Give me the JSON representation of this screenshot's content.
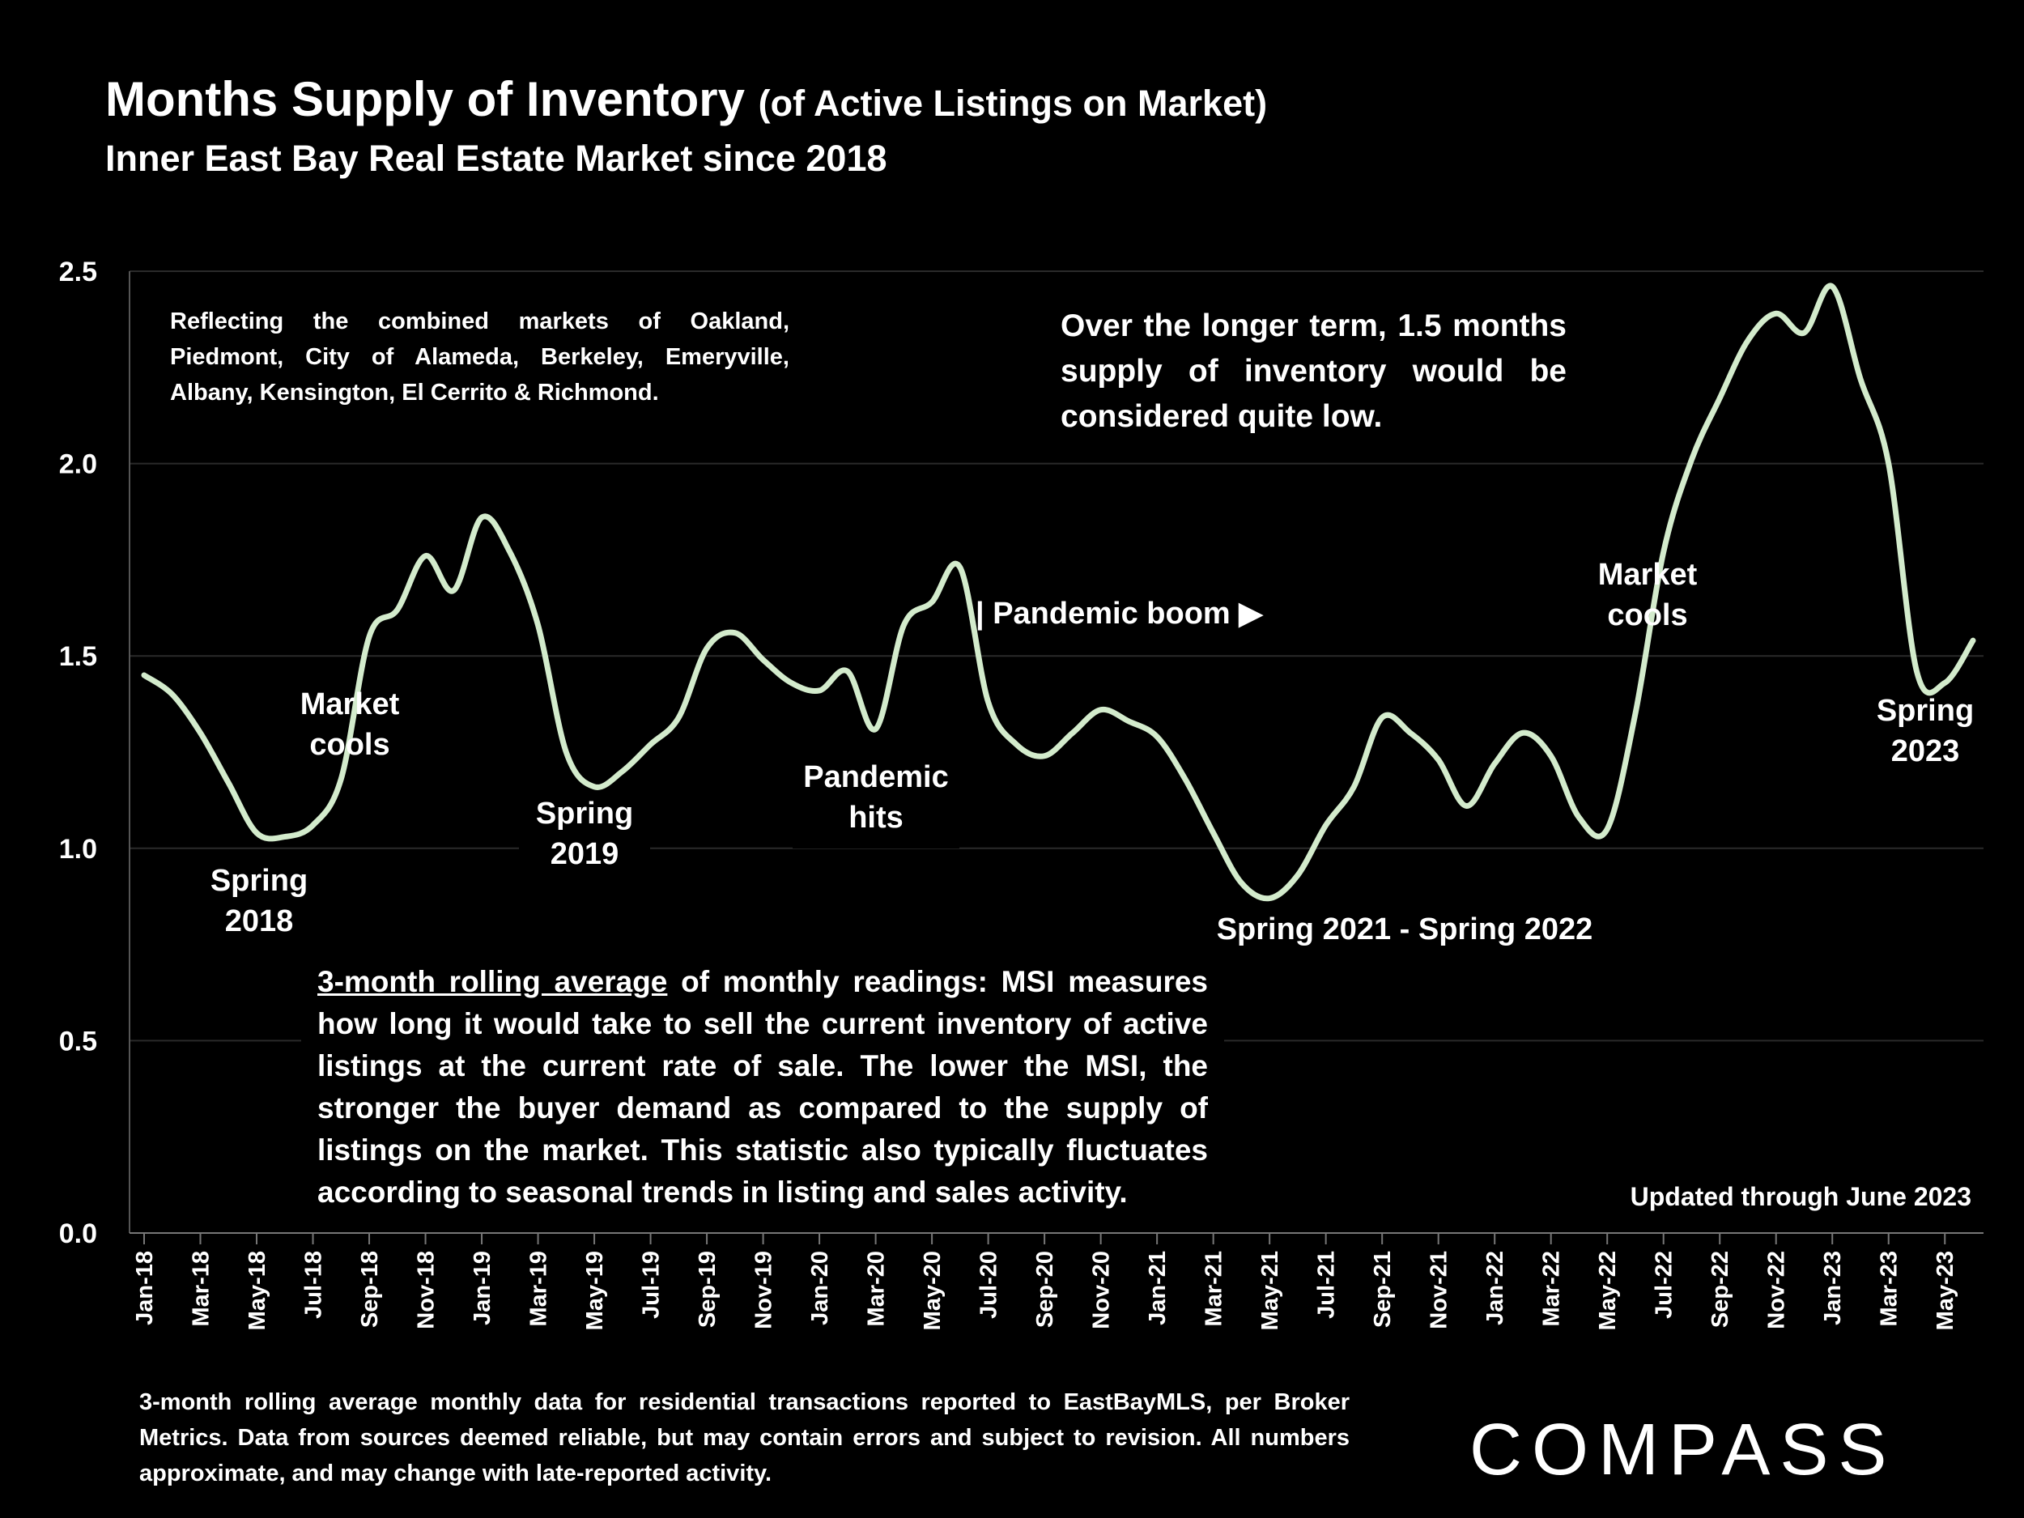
{
  "title": {
    "main": "Months Supply of Inventory",
    "suffix": "(of Active Listings on Market)",
    "subtitle": "Inner East Bay Real Estate Market since 2018"
  },
  "notes": {
    "markets": "Reflecting the combined markets of Oakland, Piedmont, City of Alameda, Berkeley, Emeryville, Albany, Kensington, El Cerrito & Richmond.",
    "long_term": "Over the longer term, 1.5 months supply of inventory would be considered quite low.",
    "msi_underlined": "3-month rolling average",
    "msi_rest": " of monthly readings: MSI measures how long it would take to sell the current inventory of active listings at the current rate of sale. The lower the MSI, the stronger the buyer demand as compared to the supply of listings on the market. This statistic also typically fluctuates according to seasonal trends in listing and sales activity.",
    "updated": "Updated through June 2023"
  },
  "footnote": "3-month rolling average monthly data for residential transactions reported to EastBayMLS, per Broker Metrics. Data from sources deemed reliable, but may contain errors and subject to revision. All numbers approximate, and may change with late-reported activity.",
  "logo": "COMPASS",
  "colors": {
    "background": "#000000",
    "line": "#d3ebcc",
    "gridline": "#2a2a2a",
    "text": "#ffffff"
  },
  "chart_data": {
    "type": "line",
    "title": "Months Supply of Inventory (of Active Listings on Market)",
    "ylim": [
      0,
      2.5
    ],
    "yticks": [
      "0.0",
      "0.5",
      "1.0",
      "1.5",
      "2.0",
      "2.5"
    ],
    "grid": true,
    "x": [
      "Jan-18",
      "Feb-18",
      "Mar-18",
      "Apr-18",
      "May-18",
      "Jun-18",
      "Jul-18",
      "Aug-18",
      "Sep-18",
      "Oct-18",
      "Nov-18",
      "Dec-18",
      "Jan-19",
      "Feb-19",
      "Mar-19",
      "Apr-19",
      "May-19",
      "Jun-19",
      "Jul-19",
      "Aug-19",
      "Sep-19",
      "Oct-19",
      "Nov-19",
      "Dec-19",
      "Jan-20",
      "Feb-20",
      "Mar-20",
      "Apr-20",
      "May-20",
      "Jun-20",
      "Jul-20",
      "Aug-20",
      "Sep-20",
      "Oct-20",
      "Nov-20",
      "Dec-20",
      "Jan-21",
      "Feb-21",
      "Mar-21",
      "Apr-21",
      "May-21",
      "Jun-21",
      "Jul-21",
      "Aug-21",
      "Sep-21",
      "Oct-21",
      "Nov-21",
      "Dec-21",
      "Jan-22",
      "Feb-22",
      "Mar-22",
      "Apr-22",
      "May-22",
      "Jun-22",
      "Jul-22",
      "Aug-22",
      "Sep-22",
      "Oct-22",
      "Nov-22",
      "Dec-22",
      "Jan-23",
      "Feb-23",
      "Mar-23",
      "Apr-23",
      "May-23",
      "Jun-23"
    ],
    "tick_labels": [
      "Jan-18",
      "Mar-18",
      "May-18",
      "Jul-18",
      "Sep-18",
      "Nov-18",
      "Jan-19",
      "Mar-19",
      "May-19",
      "Jul-19",
      "Sep-19",
      "Nov-19",
      "Jan-20",
      "Mar-20",
      "May-20",
      "Jul-20",
      "Sep-20",
      "Nov-20",
      "Jan-21",
      "Mar-21",
      "May-21",
      "Jul-21",
      "Sep-21",
      "Nov-21",
      "Jan-22",
      "Mar-22",
      "May-22",
      "Jul-22",
      "Sep-22",
      "Nov-22",
      "Jan-23",
      "Mar-23",
      "May-23"
    ],
    "series": [
      {
        "values": [
          1.45,
          1.4,
          1.3,
          1.17,
          1.04,
          1.03,
          1.06,
          1.18,
          1.55,
          1.62,
          1.76,
          1.67,
          1.86,
          1.77,
          1.58,
          1.25,
          1.16,
          1.2,
          1.27,
          1.34,
          1.52,
          1.56,
          1.49,
          1.43,
          1.41,
          1.46,
          1.31,
          1.58,
          1.64,
          1.73,
          1.38,
          1.27,
          1.24,
          1.3,
          1.36,
          1.33,
          1.29,
          1.18,
          1.04,
          0.91,
          0.87,
          0.93,
          1.06,
          1.16,
          1.34,
          1.3,
          1.23,
          1.11,
          1.22,
          1.3,
          1.24,
          1.08,
          1.05,
          1.35,
          1.77,
          2.01,
          2.17,
          2.32,
          2.39,
          2.34,
          2.46,
          2.22,
          2.0,
          1.46,
          1.43,
          1.54
        ]
      }
    ],
    "annotations": [
      {
        "lines": [
          "Spring",
          "2018"
        ]
      },
      {
        "lines": [
          "Market",
          "cools"
        ]
      },
      {
        "lines": [
          "Spring",
          "2019"
        ]
      },
      {
        "lines": [
          "Pandemic",
          "hits"
        ]
      },
      {
        "lines": [
          "| Pandemic boom ▶"
        ]
      },
      {
        "lines": [
          "Spring 2021 - Spring 2022"
        ]
      },
      {
        "lines": [
          "Market",
          "cools"
        ]
      },
      {
        "lines": [
          "Spring",
          "2023"
        ]
      }
    ]
  }
}
